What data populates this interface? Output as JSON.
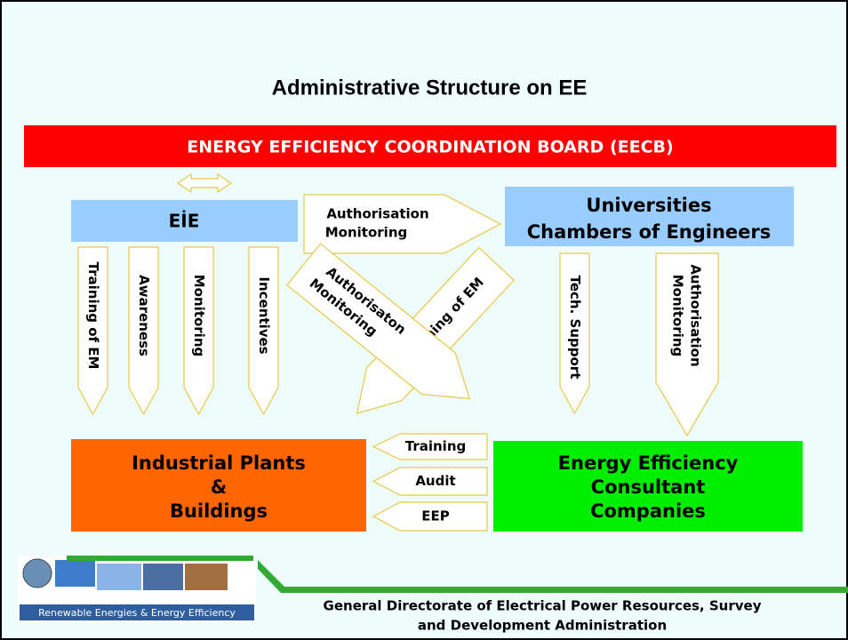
{
  "title": "Administrative Structure on EE",
  "board": "ENERGY EFFICIENCY COORDINATION BOARD (EECB)",
  "nodes": {
    "eie": "EİE",
    "universities": [
      "Universities",
      "Chambers of Engineers"
    ],
    "industrial": [
      "Industrial Plants",
      "&",
      "Buildings"
    ],
    "consultants": [
      "Energy Efficiency",
      "Consultant",
      "Companies"
    ]
  },
  "arrows": {
    "eie_to_universities": [
      "Authorisation",
      "Monitoring"
    ],
    "eie_down": [
      "Training of EM",
      "Awareness",
      "Monitoring",
      "Incentives"
    ],
    "diagonal_down_right": [
      "Authorisaton",
      "Monitoring"
    ],
    "diagonal_down_left": "Training of EM",
    "universities_down": [
      "Tech. Support",
      [
        "Authorisation",
        "Monitoring"
      ]
    ],
    "consultants_to_industrial": [
      "Training",
      "Audit",
      "EEP"
    ]
  },
  "footer": {
    "logo_caption": "Renewable Energies & Energy Efficiency",
    "organisation": [
      "General Directorate of Electrical Power Resources, Survey",
      "and Development Administration"
    ]
  }
}
